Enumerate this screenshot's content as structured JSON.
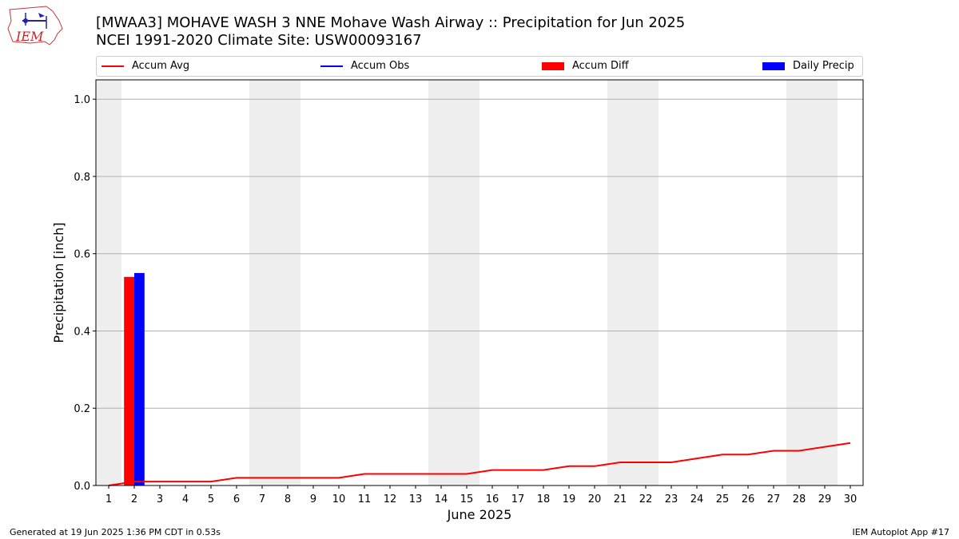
{
  "header": {
    "title_line1": "[MWAA3] MOHAVE WASH 3 NNE Mohave Wash Airway :: Precipitation for Jun 2025",
    "title_line2": "NCEI 1991-2020 Climate Site: USW00093167",
    "logo_text": "IEM"
  },
  "legend": {
    "items": [
      {
        "label": "Accum Avg",
        "kind": "line",
        "color": "#ff0000"
      },
      {
        "label": "Accum Obs",
        "kind": "line",
        "color": "#0000ff"
      },
      {
        "label": "Accum Diff",
        "kind": "box",
        "color": "#ff0000"
      },
      {
        "label": "Daily Precip",
        "kind": "box",
        "color": "#0000ff"
      }
    ]
  },
  "footer": {
    "generated": "Generated at 19 Jun 2025 1:36 PM CDT in 0.53s",
    "app": "IEM Autoplot App #17"
  },
  "chart_data": {
    "type": "bar",
    "title": "[MWAA3] MOHAVE WASH 3 NNE Mohave Wash Airway :: Precipitation for Jun 2025",
    "subtitle": "NCEI 1991-2020 Climate Site: USW00093167",
    "xlabel": "June 2025",
    "ylabel": "Precipitation [inch]",
    "x": [
      1,
      2,
      3,
      4,
      5,
      6,
      7,
      8,
      9,
      10,
      11,
      12,
      13,
      14,
      15,
      16,
      17,
      18,
      19,
      20,
      21,
      22,
      23,
      24,
      25,
      26,
      27,
      28,
      29,
      30
    ],
    "xlim": [
      0.5,
      30.5
    ],
    "ylim": [
      0,
      1.05
    ],
    "yticks": [
      0.0,
      0.2,
      0.4,
      0.6,
      0.8,
      1.0
    ],
    "ytick_labels": [
      "0.0",
      "0.2",
      "0.4",
      "0.6",
      "0.8",
      "1.0"
    ],
    "grid": "y",
    "legend_position": "top",
    "weekend_shading": [
      [
        0.5,
        1.5
      ],
      [
        6.5,
        8.5
      ],
      [
        13.5,
        15.5
      ],
      [
        20.5,
        22.5
      ],
      [
        27.5,
        29.5
      ]
    ],
    "series": [
      {
        "name": "Accum Avg",
        "kind": "line",
        "color": "#ff0000",
        "x": [
          1,
          2,
          3,
          4,
          5,
          6,
          7,
          8,
          9,
          10,
          11,
          12,
          13,
          14,
          15,
          16,
          17,
          18,
          19,
          20,
          21,
          22,
          23,
          24,
          25,
          26,
          27,
          28,
          29,
          30
        ],
        "values": [
          0.0,
          0.01,
          0.01,
          0.01,
          0.01,
          0.02,
          0.02,
          0.02,
          0.02,
          0.02,
          0.03,
          0.03,
          0.03,
          0.03,
          0.03,
          0.04,
          0.04,
          0.04,
          0.05,
          0.05,
          0.06,
          0.06,
          0.06,
          0.07,
          0.08,
          0.08,
          0.09,
          0.09,
          0.1,
          0.11
        ]
      },
      {
        "name": "Accum Diff",
        "kind": "bar",
        "color": "#ff0000",
        "x": [
          2
        ],
        "values": [
          0.54
        ]
      },
      {
        "name": "Daily Precip",
        "kind": "bar",
        "color": "#0000ff",
        "x": [
          2
        ],
        "values": [
          0.55
        ]
      }
    ]
  }
}
